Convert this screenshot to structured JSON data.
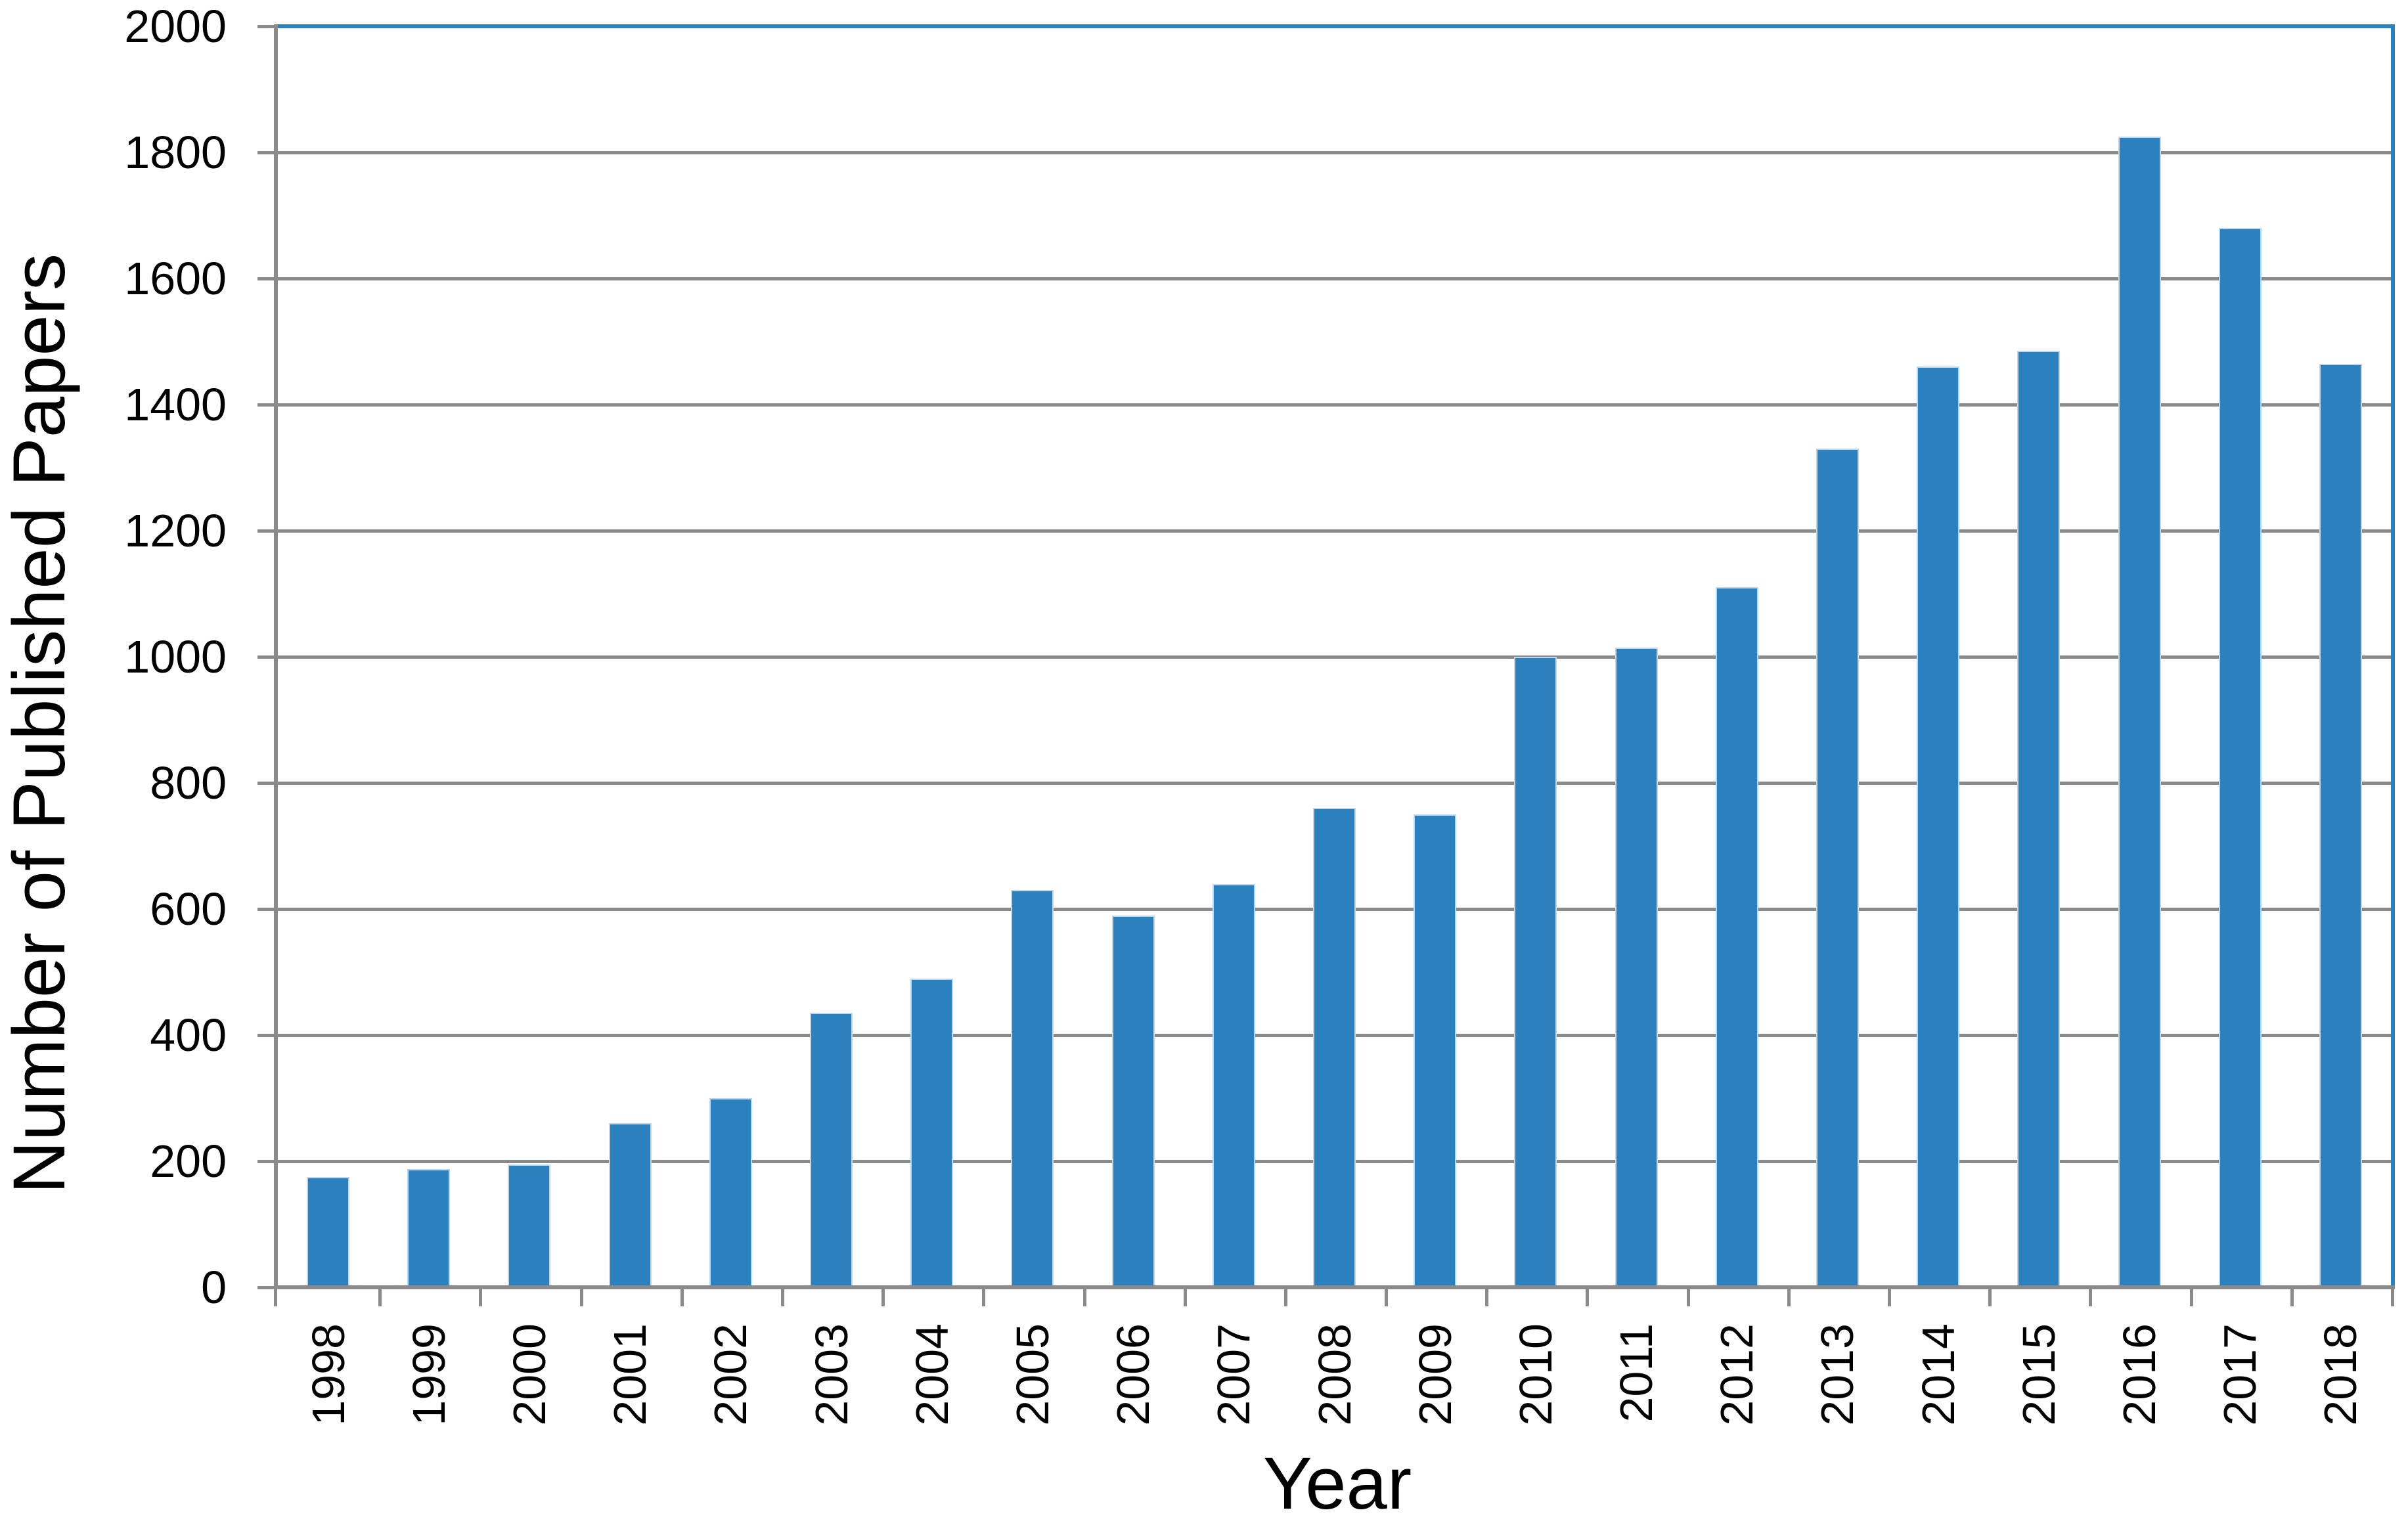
{
  "chart_data": {
    "type": "bar",
    "title": "",
    "xlabel": "Year",
    "ylabel": "Number of Published Papers",
    "categories": [
      "1998",
      "1999",
      "2000",
      "2001",
      "2002",
      "2003",
      "2004",
      "2005",
      "2006",
      "2007",
      "2008",
      "2009",
      "2010",
      "2011",
      "2012",
      "2013",
      "2014",
      "2015",
      "2016",
      "2017",
      "2018"
    ],
    "values": [
      175,
      188,
      195,
      260,
      300,
      435,
      490,
      630,
      590,
      640,
      760,
      750,
      1000,
      1015,
      1110,
      1330,
      1460,
      1485,
      1825,
      1680,
      1465
    ],
    "ylim": [
      0,
      2000
    ],
    "ytick_step": 200,
    "yticks": [
      "0",
      "200",
      "400",
      "600",
      "800",
      "1000",
      "1200",
      "1400",
      "1600",
      "1800",
      "2000"
    ],
    "grid": true,
    "legend": false,
    "colors": {
      "bar_fill": "#2A81BD",
      "bar_edge": "#BCD7EE",
      "gridline": "#8A8A8A",
      "axis": "#8A8A8A",
      "plot_border_top_right": "#2A81BD",
      "text": "#000000",
      "background": "#FFFFFF"
    }
  }
}
